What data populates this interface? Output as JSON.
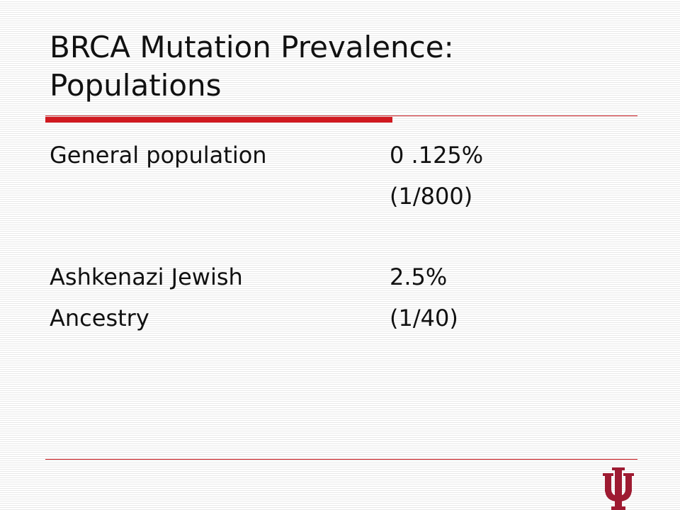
{
  "slide": {
    "title_line1": "BRCA Mutation Prevalence:",
    "title_line2": "Populations"
  },
  "rows": [
    {
      "label": "General population",
      "value": "0 .125%"
    },
    {
      "label": "",
      "value": "(1/800)"
    },
    {
      "label": "Ashkenazi Jewish",
      "value": "2.5%"
    },
    {
      "label": "Ancestry",
      "value": "(1/40)"
    }
  ],
  "colors": {
    "accent": "#d0191f",
    "text": "#111111"
  },
  "logo": {
    "icon": "trident-logo-icon"
  }
}
